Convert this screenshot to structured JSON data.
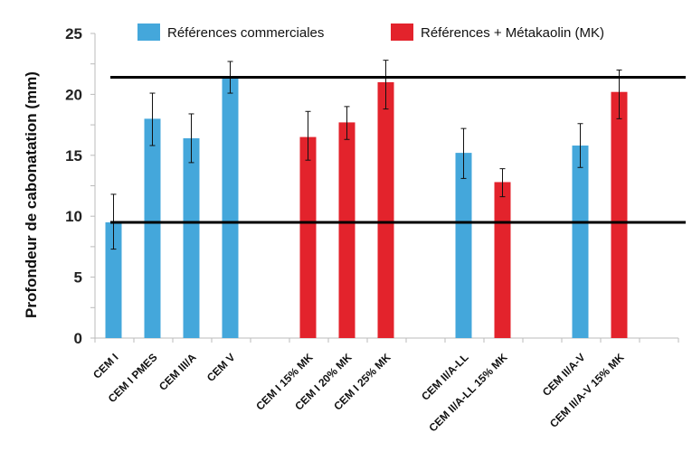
{
  "chart_data": {
    "type": "bar",
    "title": "",
    "xlabel": "",
    "ylabel": "Profondeur de cabonatation (mm)",
    "ylim": [
      0,
      25
    ],
    "yticks": [
      0,
      5,
      10,
      15,
      20,
      25
    ],
    "grid": false,
    "legend_position": "top",
    "series": [
      {
        "name": "Références commerciales",
        "color": "#44a7db"
      },
      {
        "name": "Références + Métakaolin (MK)",
        "color": "#e3232c"
      }
    ],
    "categories": [
      "CEM I",
      "CEM I PMES",
      "CEM III/A",
      "CEM V",
      "",
      "CEM I 15% MK",
      "CEM I 20% MK",
      "CEM I 25% MK",
      "",
      "CEM II/A-LL",
      "CEM II/A-LL 15% MK",
      "",
      "CEM II/A-V",
      "CEM II/A-V 15% MK",
      ""
    ],
    "bars": [
      {
        "category": "CEM I",
        "series": 0,
        "value": 9.5,
        "err_low": 7.3,
        "err_high": 11.8
      },
      {
        "category": "CEM I PMES",
        "series": 0,
        "value": 18.0,
        "err_low": 15.8,
        "err_high": 20.1
      },
      {
        "category": "CEM III/A",
        "series": 0,
        "value": 16.4,
        "err_low": 14.4,
        "err_high": 18.4
      },
      {
        "category": "CEM V",
        "series": 0,
        "value": 21.4,
        "err_low": 20.1,
        "err_high": 22.7
      },
      {
        "category": "CEM I 15% MK",
        "series": 1,
        "value": 16.5,
        "err_low": 14.6,
        "err_high": 18.6
      },
      {
        "category": "CEM I 20% MK",
        "series": 1,
        "value": 17.7,
        "err_low": 16.3,
        "err_high": 19.0
      },
      {
        "category": "CEM I 25% MK",
        "series": 1,
        "value": 21.0,
        "err_low": 18.8,
        "err_high": 22.8
      },
      {
        "category": "CEM II/A-LL",
        "series": 0,
        "value": 15.2,
        "err_low": 13.1,
        "err_high": 17.2
      },
      {
        "category": "CEM II/A-LL 15% MK",
        "series": 1,
        "value": 12.8,
        "err_low": 11.6,
        "err_high": 13.9
      },
      {
        "category": "CEM II/A-V",
        "series": 0,
        "value": 15.8,
        "err_low": 14.0,
        "err_high": 17.6
      },
      {
        "category": "CEM II/A-V 15% MK",
        "series": 1,
        "value": 20.2,
        "err_low": 18.0,
        "err_high": 22.0
      }
    ],
    "reference_lines": [
      21.4,
      9.5
    ]
  }
}
